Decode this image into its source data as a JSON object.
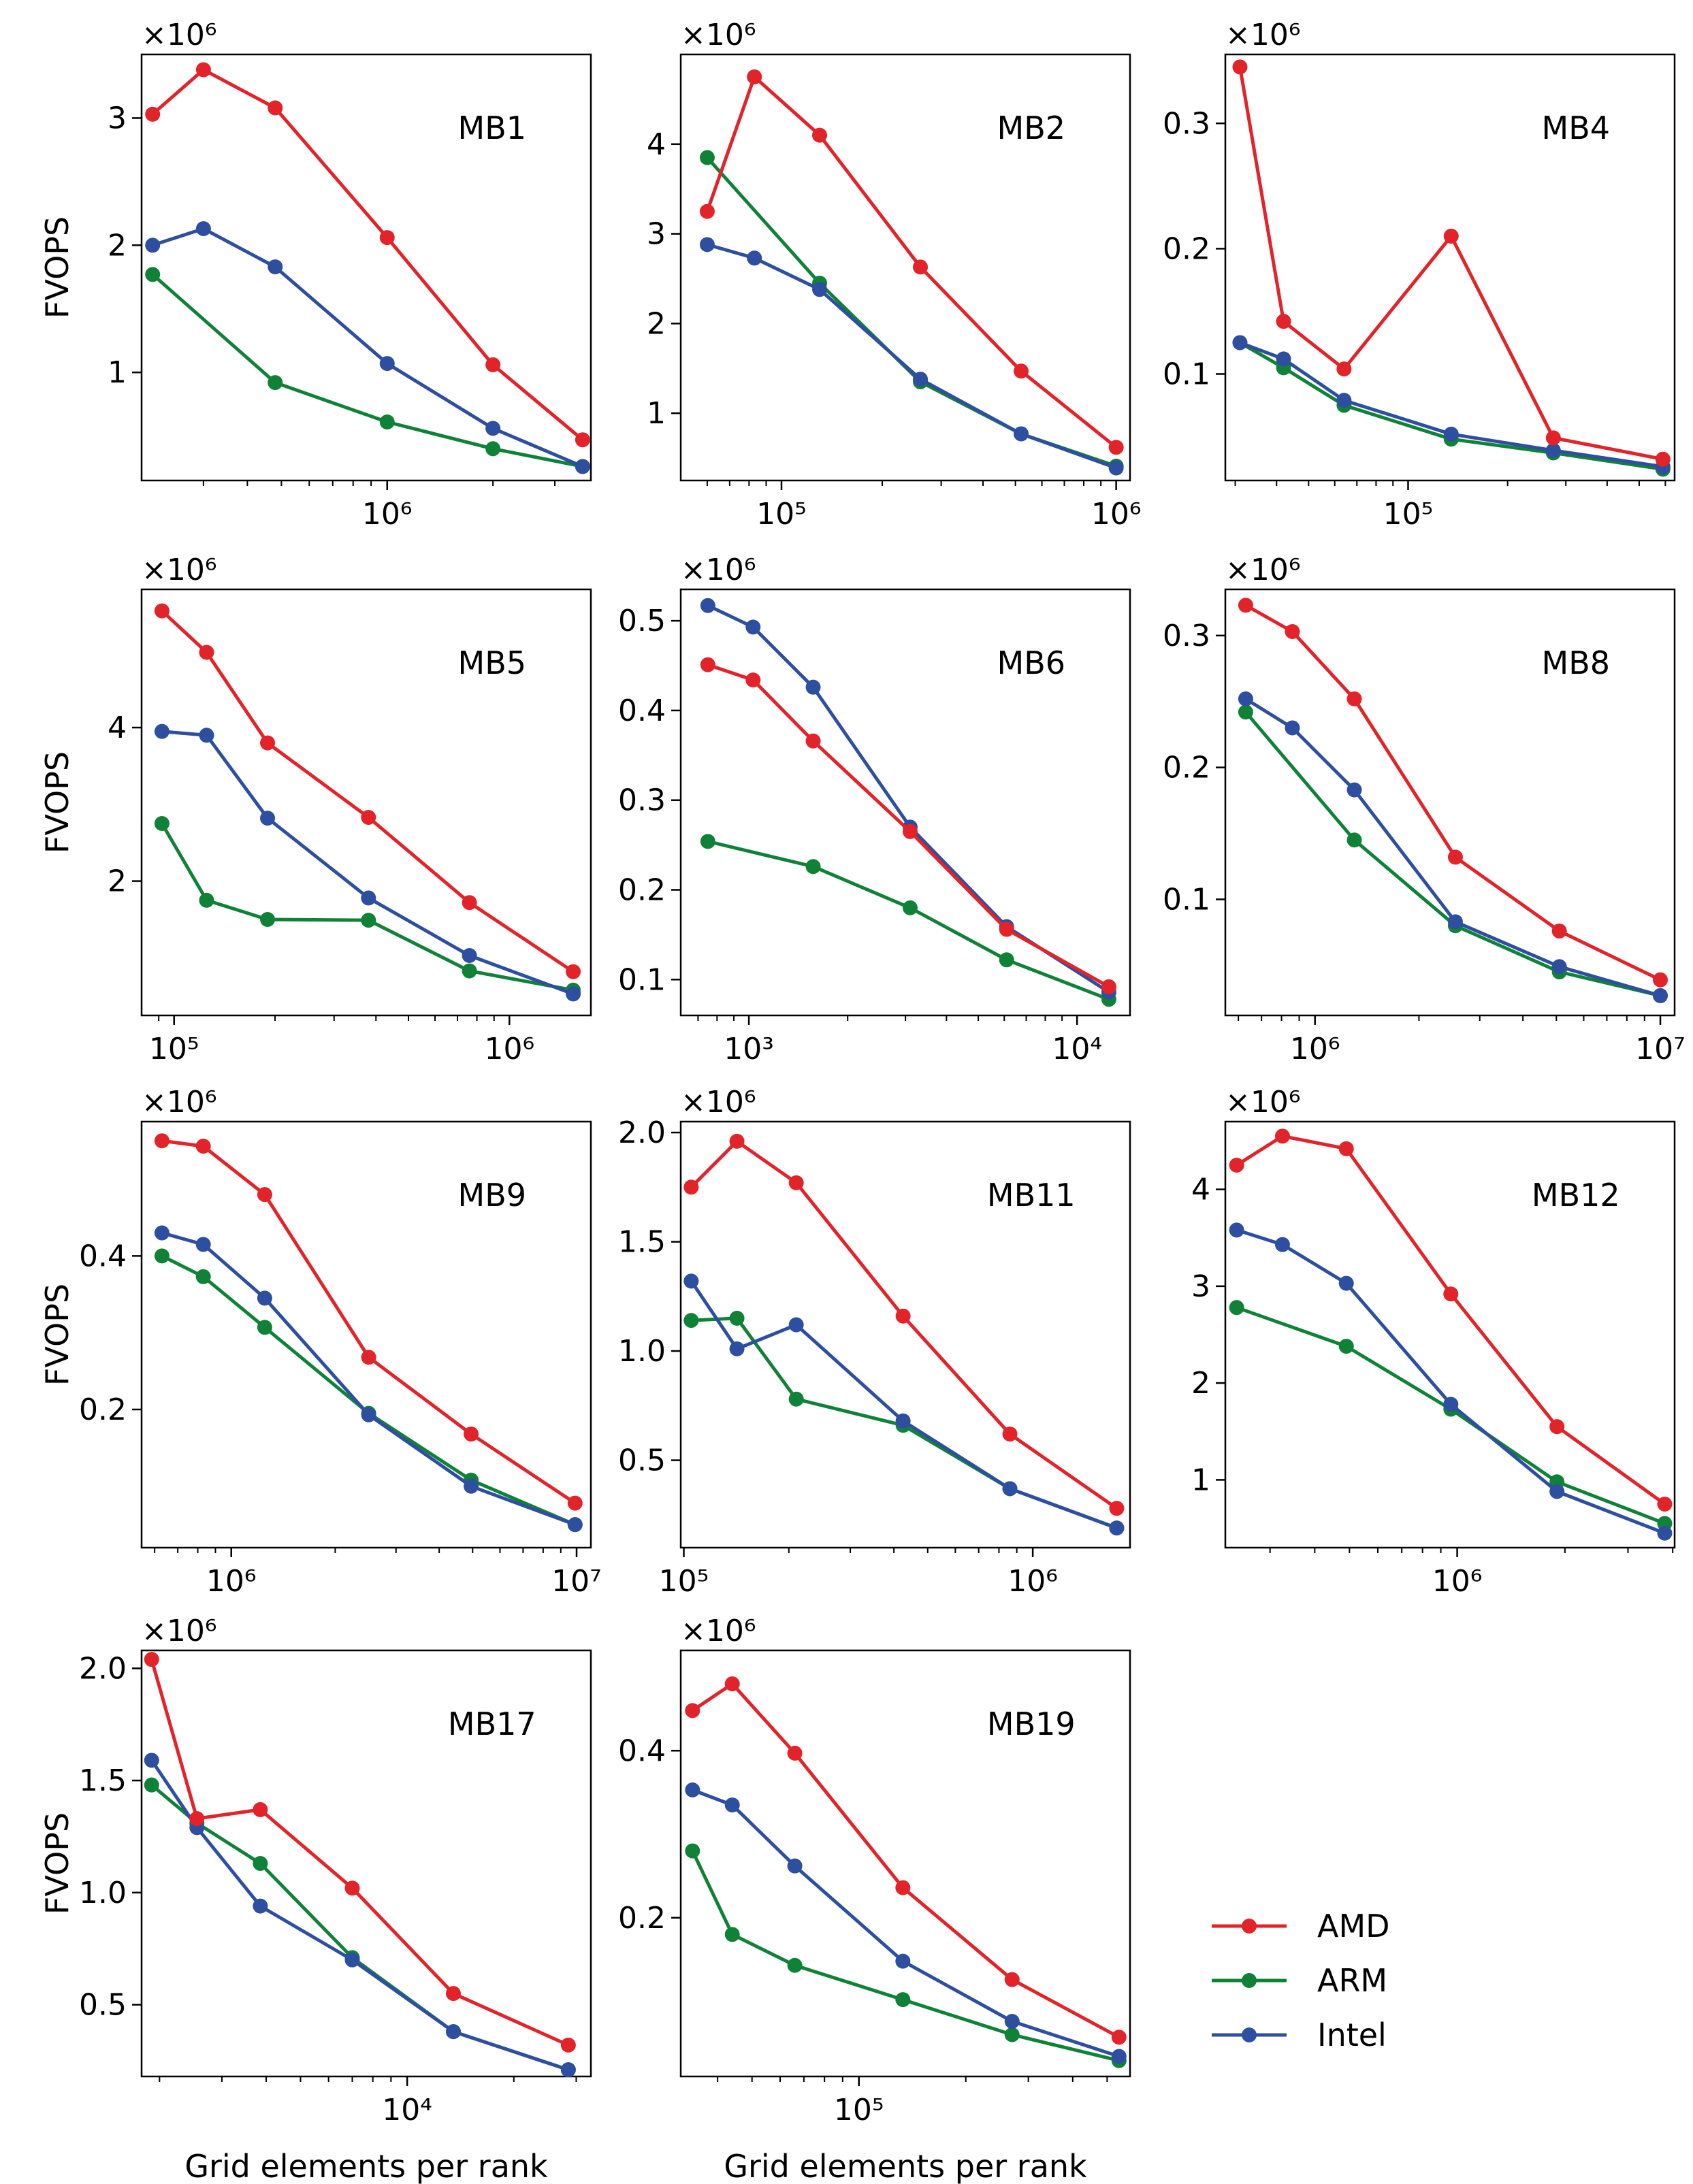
{
  "figure": {
    "ylabel": "FVOPS",
    "xlabel": "Grid elements per rank",
    "multiplier": "×10⁶",
    "legend": [
      {
        "name": "AMD",
        "color": "#e3232a"
      },
      {
        "name": "ARM",
        "color": "#108238"
      },
      {
        "name": "Intel",
        "color": "#2e4fa0"
      }
    ]
  },
  "chart_data": [
    {
      "type": "line",
      "title": "MB1",
      "xscale": "log",
      "xlim": [
        200000,
        3800000
      ],
      "ylim": [
        0.15,
        3.5
      ],
      "xticks": [
        {
          "v": 1000000,
          "label": "10⁶"
        }
      ],
      "yticks": [
        {
          "v": 1,
          "label": "1"
        },
        {
          "v": 2,
          "label": "2"
        },
        {
          "v": 3,
          "label": "3"
        }
      ],
      "x": [
        215000,
        300000,
        480000,
        1000000,
        2000000,
        3600000
      ],
      "series": [
        {
          "name": "AMD",
          "values": [
            3.03,
            3.38,
            3.08,
            2.06,
            1.06,
            0.47
          ]
        },
        {
          "name": "ARM",
          "values": [
            1.77,
            null,
            0.92,
            0.61,
            0.4,
            0.26
          ]
        },
        {
          "name": "Intel",
          "values": [
            2.0,
            2.13,
            1.83,
            1.07,
            0.56,
            0.26
          ]
        }
      ]
    },
    {
      "type": "line",
      "title": "MB2",
      "xscale": "log",
      "xlim": [
        50000,
        1100000
      ],
      "ylim": [
        0.25,
        5.0
      ],
      "xticks": [
        {
          "v": 100000,
          "label": "10⁵"
        },
        {
          "v": 1000000,
          "label": "10⁶"
        }
      ],
      "yticks": [
        {
          "v": 1,
          "label": "1"
        },
        {
          "v": 2,
          "label": "2"
        },
        {
          "v": 3,
          "label": "3"
        },
        {
          "v": 4,
          "label": "4"
        }
      ],
      "x": [
        60000,
        83000,
        130000,
        260000,
        520000,
        1000000
      ],
      "series": [
        {
          "name": "AMD",
          "values": [
            3.25,
            4.75,
            4.1,
            2.63,
            1.47,
            0.62
          ]
        },
        {
          "name": "ARM",
          "values": [
            3.85,
            null,
            2.45,
            1.35,
            0.77,
            0.41
          ]
        },
        {
          "name": "Intel",
          "values": [
            2.88,
            2.73,
            2.38,
            1.38,
            0.77,
            0.39
          ]
        }
      ]
    },
    {
      "type": "line",
      "title": "MB4",
      "xscale": "log",
      "xlim": [
        28000,
        640000
      ],
      "ylim": [
        0.015,
        0.355
      ],
      "xticks": [
        {
          "v": 100000,
          "label": "10⁵"
        }
      ],
      "yticks": [
        {
          "v": 0.1,
          "label": "0.1"
        },
        {
          "v": 0.2,
          "label": "0.2"
        },
        {
          "v": 0.3,
          "label": "0.3"
        }
      ],
      "x": [
        31000,
        42000,
        64000,
        135000,
        275000,
        590000
      ],
      "series": [
        {
          "name": "AMD",
          "values": [
            0.345,
            0.142,
            0.104,
            0.21,
            0.049,
            0.032
          ]
        },
        {
          "name": "ARM",
          "values": [
            0.125,
            0.105,
            0.075,
            0.048,
            0.037,
            0.024
          ]
        },
        {
          "name": "Intel",
          "values": [
            0.125,
            0.112,
            0.079,
            0.052,
            0.039,
            0.026
          ]
        }
      ]
    },
    {
      "type": "line",
      "title": "MB5",
      "xscale": "log",
      "xlim": [
        80000,
        1750000
      ],
      "ylim": [
        0.25,
        5.8
      ],
      "xticks": [
        {
          "v": 100000,
          "label": "10⁵"
        },
        {
          "v": 1000000,
          "label": "10⁶"
        }
      ],
      "yticks": [
        {
          "v": 2,
          "label": "2"
        },
        {
          "v": 4,
          "label": "4"
        }
      ],
      "x": [
        92000,
        125000,
        190000,
        380000,
        760000,
        1550000
      ],
      "series": [
        {
          "name": "AMD",
          "values": [
            5.52,
            4.98,
            3.8,
            2.83,
            1.72,
            0.82
          ]
        },
        {
          "name": "ARM",
          "values": [
            2.75,
            1.75,
            1.5,
            1.49,
            0.83,
            0.58
          ]
        },
        {
          "name": "Intel",
          "values": [
            3.95,
            3.9,
            2.82,
            1.78,
            1.03,
            0.53
          ]
        }
      ]
    },
    {
      "type": "line",
      "title": "MB6",
      "xscale": "log",
      "xlim": [
        620,
        14500
      ],
      "ylim": [
        0.06,
        0.535
      ],
      "xticks": [
        {
          "v": 1000,
          "label": "10³"
        },
        {
          "v": 10000,
          "label": "10⁴"
        }
      ],
      "yticks": [
        {
          "v": 0.1,
          "label": "0.1"
        },
        {
          "v": 0.2,
          "label": "0.2"
        },
        {
          "v": 0.3,
          "label": "0.3"
        },
        {
          "v": 0.4,
          "label": "0.4"
        },
        {
          "v": 0.5,
          "label": "0.5"
        }
      ],
      "x": [
        750,
        1030,
        1570,
        3100,
        6100,
        12500
      ],
      "series": [
        {
          "name": "AMD",
          "values": [
            0.451,
            0.434,
            0.366,
            0.265,
            0.156,
            0.092
          ]
        },
        {
          "name": "ARM",
          "values": [
            0.254,
            null,
            0.226,
            0.18,
            0.122,
            0.078
          ]
        },
        {
          "name": "Intel",
          "values": [
            0.517,
            0.493,
            0.426,
            0.27,
            0.159,
            0.086
          ]
        }
      ]
    },
    {
      "type": "line",
      "title": "MB8",
      "xscale": "log",
      "xlim": [
        550000,
        11000000
      ],
      "ylim": [
        0.012,
        0.335
      ],
      "xticks": [
        {
          "v": 1000000,
          "label": "10⁶"
        },
        {
          "v": 10000000,
          "label": "10⁷"
        }
      ],
      "yticks": [
        {
          "v": 0.1,
          "label": "0.1"
        },
        {
          "v": 0.2,
          "label": "0.2"
        },
        {
          "v": 0.3,
          "label": "0.3"
        }
      ],
      "x": [
        630000,
        860000,
        1300000,
        2550000,
        5100000,
        10000000
      ],
      "series": [
        {
          "name": "AMD",
          "values": [
            0.323,
            0.303,
            0.252,
            0.132,
            0.076,
            0.039
          ]
        },
        {
          "name": "ARM",
          "values": [
            0.242,
            null,
            0.145,
            0.08,
            0.045,
            0.027
          ]
        },
        {
          "name": "Intel",
          "values": [
            0.252,
            0.23,
            0.183,
            0.083,
            0.049,
            0.027
          ]
        }
      ]
    },
    {
      "type": "line",
      "title": "MB9",
      "xscale": "log",
      "xlim": [
        550000,
        11000000
      ],
      "ylim": [
        0.02,
        0.575
      ],
      "xticks": [
        {
          "v": 1000000,
          "label": "10⁶"
        },
        {
          "v": 10000000,
          "label": "10⁷"
        }
      ],
      "yticks": [
        {
          "v": 0.2,
          "label": "0.2"
        },
        {
          "v": 0.4,
          "label": "0.4"
        }
      ],
      "x": [
        630000,
        830000,
        1250000,
        2500000,
        4950000,
        9900000
      ],
      "series": [
        {
          "name": "AMD",
          "values": [
            0.55,
            0.543,
            0.48,
            0.268,
            0.168,
            0.078
          ]
        },
        {
          "name": "ARM",
          "values": [
            0.4,
            0.373,
            0.307,
            0.195,
            0.108,
            0.05
          ]
        },
        {
          "name": "Intel",
          "values": [
            0.43,
            0.415,
            0.345,
            0.193,
            0.1,
            0.05
          ]
        }
      ]
    },
    {
      "type": "line",
      "title": "MB11",
      "xscale": "log",
      "xlim": [
        98000,
        1900000
      ],
      "ylim": [
        0.1,
        2.05
      ],
      "xticks": [
        {
          "v": 100000,
          "label": "10⁵"
        },
        {
          "v": 1000000,
          "label": "10⁶"
        }
      ],
      "yticks": [
        {
          "v": 0.5,
          "label": "0.5"
        },
        {
          "v": 1.0,
          "label": "1.0"
        },
        {
          "v": 1.5,
          "label": "1.5"
        },
        {
          "v": 2.0,
          "label": "2.0"
        }
      ],
      "x": [
        105000,
        142000,
        210000,
        425000,
        860000,
        1740000
      ],
      "series": [
        {
          "name": "AMD",
          "values": [
            1.75,
            1.96,
            1.77,
            1.16,
            0.62,
            0.28
          ]
        },
        {
          "name": "ARM",
          "values": [
            1.14,
            1.15,
            0.78,
            0.66,
            0.37,
            0.19
          ]
        },
        {
          "name": "Intel",
          "values": [
            1.32,
            1.01,
            1.12,
            0.68,
            0.37,
            0.19
          ]
        }
      ]
    },
    {
      "type": "line",
      "title": "MB12",
      "xscale": "log",
      "xlim": [
        225000,
        4050000
      ],
      "ylim": [
        0.3,
        4.7
      ],
      "xticks": [
        {
          "v": 1000000,
          "label": "10⁶"
        }
      ],
      "yticks": [
        {
          "v": 1,
          "label": "1"
        },
        {
          "v": 2,
          "label": "2"
        },
        {
          "v": 3,
          "label": "3"
        },
        {
          "v": 4,
          "label": "4"
        }
      ],
      "x": [
        242000,
        325000,
        490000,
        960000,
        1900000,
        3800000
      ],
      "series": [
        {
          "name": "AMD",
          "values": [
            4.25,
            4.55,
            4.42,
            2.92,
            1.55,
            0.75
          ]
        },
        {
          "name": "ARM",
          "values": [
            2.78,
            null,
            2.38,
            1.73,
            0.98,
            0.55
          ]
        },
        {
          "name": "Intel",
          "values": [
            3.58,
            3.43,
            3.03,
            1.78,
            0.88,
            0.45
          ]
        }
      ]
    },
    {
      "type": "line",
      "title": "MB17",
      "xscale": "log",
      "xlim": [
        1780,
        33000
      ],
      "ylim": [
        0.18,
        2.08
      ],
      "xticks": [
        {
          "v": 10000,
          "label": "10⁴"
        }
      ],
      "yticks": [
        {
          "v": 0.5,
          "label": "0.5"
        },
        {
          "v": 1.0,
          "label": "1.0"
        },
        {
          "v": 1.5,
          "label": "1.5"
        },
        {
          "v": 2.0,
          "label": "2.0"
        }
      ],
      "x": [
        1900,
        2550,
        3850,
        7000,
        13500,
        28500
      ],
      "series": [
        {
          "name": "AMD",
          "values": [
            2.04,
            1.33,
            1.37,
            1.02,
            0.55,
            0.32
          ]
        },
        {
          "name": "ARM",
          "values": [
            1.48,
            1.31,
            1.13,
            0.71,
            0.38,
            0.21
          ]
        },
        {
          "name": "Intel",
          "values": [
            1.59,
            1.29,
            0.94,
            0.7,
            0.38,
            0.21
          ]
        }
      ]
    },
    {
      "type": "line",
      "title": "MB19",
      "xscale": "log",
      "xlim": [
        31500,
        580000
      ],
      "ylim": [
        0.01,
        0.52
      ],
      "xticks": [
        {
          "v": 100000,
          "label": "10⁵"
        }
      ],
      "yticks": [
        {
          "v": 0.2,
          "label": "0.2"
        },
        {
          "v": 0.4,
          "label": "0.4"
        }
      ],
      "x": [
        34000,
        44000,
        66000,
        133000,
        270000,
        540000
      ],
      "series": [
        {
          "name": "AMD",
          "values": [
            0.448,
            0.48,
            0.397,
            0.236,
            0.126,
            0.057
          ]
        },
        {
          "name": "ARM",
          "values": [
            0.28,
            0.18,
            0.143,
            0.102,
            0.06,
            0.029
          ]
        },
        {
          "name": "Intel",
          "values": [
            0.353,
            0.335,
            0.262,
            0.148,
            0.076,
            0.034
          ]
        }
      ]
    }
  ]
}
